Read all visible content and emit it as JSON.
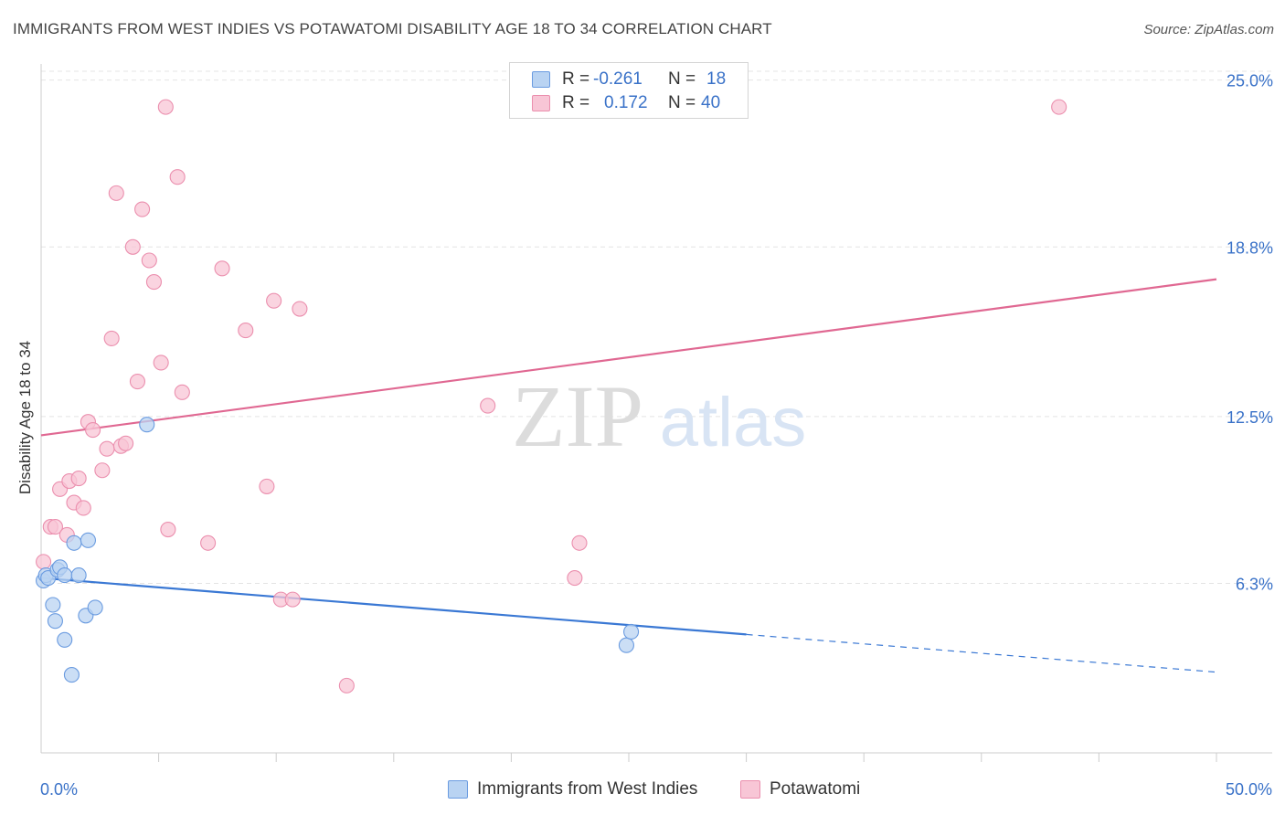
{
  "header": {
    "title": "IMMIGRANTS FROM WEST INDIES VS POTAWATOMI DISABILITY AGE 18 TO 34 CORRELATION CHART",
    "source": "Source: ZipAtlas.com"
  },
  "watermark": {
    "zip": "ZIP",
    "atlas": "atlas"
  },
  "colors": {
    "blue_fill": "#b9d3f2",
    "blue_stroke": "#6a9be0",
    "blue_line": "#3a78d4",
    "pink_fill": "#f8c6d6",
    "pink_stroke": "#eb8fae",
    "pink_line": "#e06892",
    "tick_label": "#3a72c8",
    "grid": "#e4e4e4"
  },
  "legend_top": {
    "rows": [
      {
        "r_label": "R =",
        "r_value": "-0.261",
        "n_label": "N =",
        "n_value": "18"
      },
      {
        "r_label": "R =",
        "r_value": "0.172",
        "n_label": "N =",
        "n_value": "40"
      }
    ]
  },
  "legend_bottom": {
    "items": [
      "Immigrants from West Indies",
      "Potawatomi"
    ]
  },
  "chart_data": {
    "type": "scatter",
    "title": "IMMIGRANTS FROM WEST INDIES VS POTAWATOMI DISABILITY AGE 18 TO 34 CORRELATION CHART",
    "xlabel": "",
    "ylabel": "Disability Age 18 to 34",
    "xlim": [
      0,
      50
    ],
    "ylim": [
      0,
      25.6
    ],
    "x_ticks": [
      0,
      50
    ],
    "x_tick_labels": [
      "0.0%",
      "50.0%"
    ],
    "y_ticks": [
      6.3,
      12.5,
      18.8,
      25.0
    ],
    "y_tick_labels": [
      "6.3%",
      "12.5%",
      "18.8%",
      "25.0%"
    ],
    "grid": true,
    "legend_position": "top-center",
    "series": [
      {
        "name": "Immigrants from West Indies",
        "r": -0.261,
        "n": 18,
        "points": [
          [
            0.1,
            6.4
          ],
          [
            0.2,
            6.6
          ],
          [
            0.3,
            6.5
          ],
          [
            0.5,
            5.5
          ],
          [
            0.6,
            4.9
          ],
          [
            0.7,
            6.8
          ],
          [
            0.8,
            6.9
          ],
          [
            1.0,
            4.2
          ],
          [
            1.0,
            6.6
          ],
          [
            1.3,
            2.9
          ],
          [
            1.4,
            7.8
          ],
          [
            1.6,
            6.6
          ],
          [
            1.9,
            5.1
          ],
          [
            2.0,
            7.9
          ],
          [
            2.3,
            5.4
          ],
          [
            4.5,
            12.2
          ],
          [
            24.9,
            4.0
          ],
          [
            25.1,
            4.5
          ]
        ],
        "trend": {
          "x": [
            0,
            30
          ],
          "y": [
            6.5,
            4.4
          ]
        },
        "trend_extension": {
          "x": [
            30,
            50
          ],
          "y": [
            4.4,
            3.0
          ]
        }
      },
      {
        "name": "Potawatomi",
        "r": 0.172,
        "n": 40,
        "points": [
          [
            0.1,
            7.1
          ],
          [
            0.4,
            8.4
          ],
          [
            0.6,
            8.4
          ],
          [
            0.8,
            9.8
          ],
          [
            1.1,
            8.1
          ],
          [
            1.2,
            10.1
          ],
          [
            1.4,
            9.3
          ],
          [
            1.6,
            10.2
          ],
          [
            1.8,
            9.1
          ],
          [
            2.0,
            12.3
          ],
          [
            2.2,
            12.0
          ],
          [
            2.6,
            10.5
          ],
          [
            2.8,
            11.3
          ],
          [
            3.0,
            15.4
          ],
          [
            3.2,
            20.8
          ],
          [
            3.4,
            11.4
          ],
          [
            3.6,
            11.5
          ],
          [
            3.9,
            18.8
          ],
          [
            4.1,
            13.8
          ],
          [
            4.3,
            20.2
          ],
          [
            4.6,
            18.3
          ],
          [
            4.8,
            17.5
          ],
          [
            5.1,
            14.5
          ],
          [
            5.3,
            24.0
          ],
          [
            5.4,
            8.3
          ],
          [
            5.8,
            21.4
          ],
          [
            6.0,
            13.4
          ],
          [
            7.1,
            7.8
          ],
          [
            7.7,
            18.0
          ],
          [
            8.7,
            15.7
          ],
          [
            9.6,
            9.9
          ],
          [
            9.9,
            16.8
          ],
          [
            10.2,
            5.7
          ],
          [
            10.7,
            5.7
          ],
          [
            11.0,
            16.5
          ],
          [
            13.0,
            2.5
          ],
          [
            19.0,
            12.9
          ],
          [
            22.7,
            6.5
          ],
          [
            22.9,
            7.8
          ],
          [
            43.3,
            24.0
          ]
        ],
        "trend": {
          "x": [
            0,
            50
          ],
          "y": [
            11.8,
            17.6
          ]
        }
      }
    ]
  }
}
